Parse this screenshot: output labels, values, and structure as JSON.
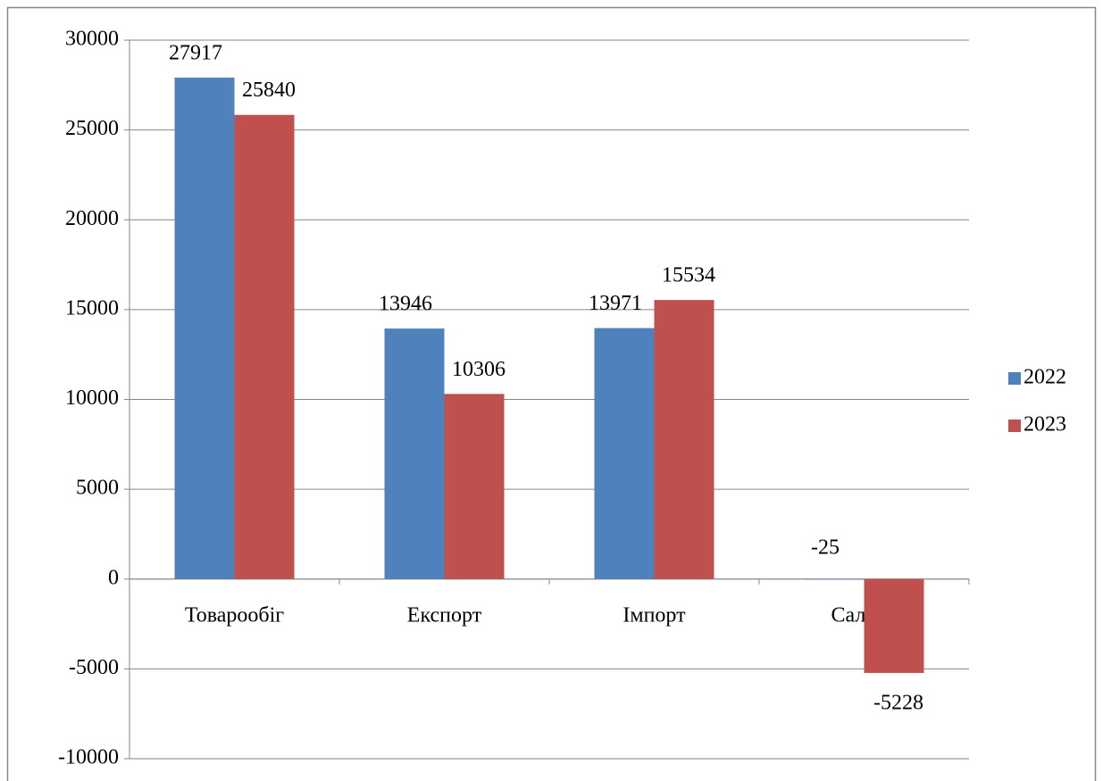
{
  "chart_data": {
    "type": "bar",
    "categories": [
      "Товарообіг",
      "Експорт",
      "Імпорт",
      "Сальдо"
    ],
    "series": [
      {
        "name": "2022",
        "color": "#4f81bd",
        "values": [
          27917,
          13946,
          13971,
          -25
        ]
      },
      {
        "name": "2023",
        "color": "#c0504d",
        "values": [
          25840,
          10306,
          15534,
          -5228
        ]
      }
    ],
    "ylim": [
      -10000,
      30000
    ],
    "yticks": [
      -10000,
      -5000,
      0,
      5000,
      10000,
      15000,
      20000,
      25000,
      30000
    ],
    "grid": true,
    "legend": "right"
  }
}
